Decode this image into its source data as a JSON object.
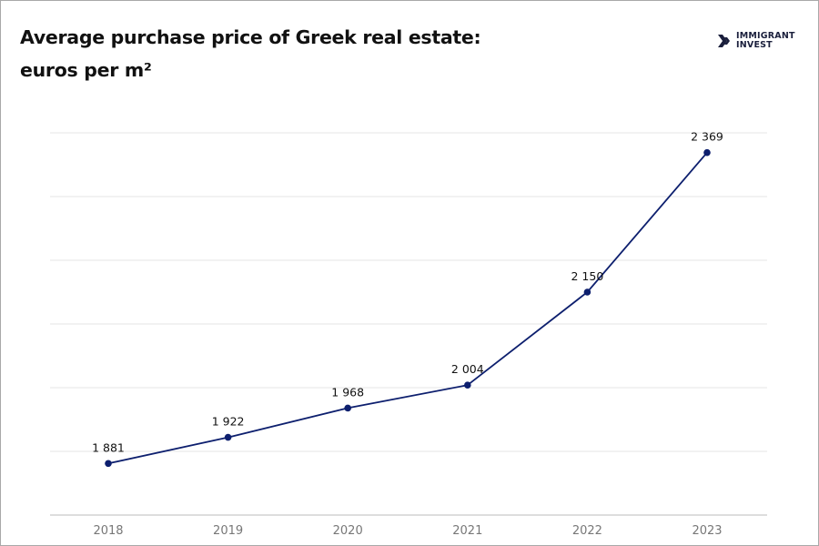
{
  "chart_data": {
    "type": "line",
    "title": "Average purchase price of Greek real estate:",
    "subtitle": "euros per m²",
    "categories": [
      "2018",
      "2019",
      "2020",
      "2021",
      "2022",
      "2023"
    ],
    "series": [
      {
        "values": [
          1881,
          1922,
          1968,
          2004,
          2150,
          2369
        ]
      }
    ],
    "data_labels": [
      "1 881",
      "1 922",
      "1 968",
      "2 004",
      "2 150",
      "2 369"
    ],
    "ylim": [
      1800,
      2400
    ],
    "grid": true,
    "line_color": "#0d1f6e",
    "xlabel": "",
    "ylabel": ""
  },
  "logo": {
    "line1": "IMMIGRANT",
    "line2": "INVEST",
    "color": "#1a1f3c"
  }
}
